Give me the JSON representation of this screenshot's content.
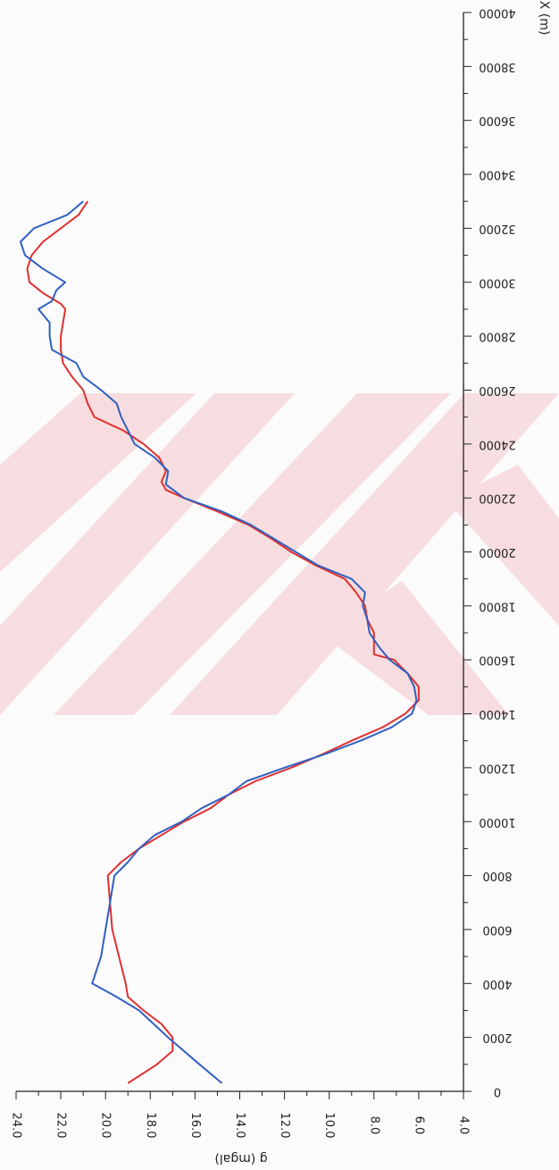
{
  "chart_data": {
    "type": "line",
    "orientation": "rotated-180",
    "xlabel": "X (m)",
    "ylabel": "g (mgal)",
    "xlim": [
      0,
      40000
    ],
    "ylim": [
      4.0,
      24.0
    ],
    "x_ticks": [
      "0",
      "2000",
      "4000",
      "6000",
      "8000",
      "10000",
      "12000",
      "14000",
      "16000",
      "18000",
      "20000",
      "22000",
      "24000",
      "26000",
      "28000",
      "30000",
      "32000",
      "34000",
      "36000",
      "38000",
      "40000"
    ],
    "y_ticks": [
      "4.0",
      "6.0",
      "8.0",
      "10.0",
      "12.0",
      "14.0",
      "16.0",
      "18.0",
      "20.0",
      "22.0",
      "24.0"
    ],
    "grid": false,
    "series": [
      {
        "color": "#e03030",
        "x": [
          300,
          1000,
          1500,
          2000,
          2500,
          3000,
          3500,
          4000,
          5000,
          6000,
          7000,
          8000,
          8500,
          9000,
          9500,
          10000,
          10500,
          11000,
          11500,
          12000,
          12500,
          13000,
          13500,
          14000,
          14500,
          15000,
          15500,
          16000,
          16200,
          16600,
          17000,
          17500,
          18000,
          18500,
          19000,
          19500,
          20000,
          20500,
          21000,
          21500,
          22000,
          22300,
          22600,
          23000,
          23500,
          24000,
          24500,
          25000,
          25500,
          26000,
          26500,
          27000,
          27500,
          28000,
          28500,
          29000,
          29200,
          29600,
          30000,
          30500,
          31000,
          31500,
          32000,
          32500,
          33000
        ],
        "y": [
          19.0,
          17.7,
          17.0,
          17.0,
          17.5,
          18.3,
          19.0,
          19.1,
          19.4,
          19.7,
          19.8,
          19.9,
          19.3,
          18.5,
          17.5,
          16.5,
          15.3,
          14.5,
          13.3,
          11.7,
          10.3,
          9.0,
          7.6,
          6.6,
          6.0,
          6.0,
          6.5,
          7.1,
          8.0,
          8.0,
          8.0,
          8.3,
          8.4,
          8.8,
          9.3,
          10.6,
          11.7,
          12.6,
          13.6,
          15.0,
          16.5,
          17.3,
          17.5,
          17.3,
          17.6,
          18.3,
          19.2,
          20.5,
          20.8,
          21.0,
          21.5,
          21.9,
          22.0,
          22.0,
          21.9,
          21.8,
          22.0,
          22.8,
          23.4,
          23.5,
          23.3,
          22.8,
          22.0,
          21.2,
          20.8
        ]
      },
      {
        "color": "#3060c0",
        "x": [
          300,
          1000,
          2000,
          3000,
          3500,
          4000,
          4500,
          5000,
          6000,
          7000,
          8000,
          8500,
          9000,
          9500,
          10000,
          10500,
          11000,
          11500,
          12000,
          12500,
          13000,
          13500,
          14000,
          14500,
          15000,
          15500,
          16000,
          16500,
          17000,
          17500,
          18000,
          18500,
          19000,
          19500,
          20000,
          20500,
          21000,
          21500,
          22000,
          22500,
          23000,
          23500,
          24000,
          24500,
          25000,
          25500,
          26000,
          26500,
          27000,
          27500,
          28000,
          28500,
          29000,
          29300,
          29700,
          30000,
          30500,
          31000,
          31500,
          32000,
          32500,
          33000
        ],
        "y": [
          14.8,
          15.8,
          17.2,
          18.5,
          19.5,
          20.6,
          20.4,
          20.2,
          20.0,
          19.8,
          19.6,
          19.0,
          18.5,
          17.8,
          16.6,
          15.7,
          14.5,
          13.7,
          12.0,
          10.2,
          8.6,
          7.2,
          6.3,
          6.1,
          6.2,
          6.5,
          7.3,
          7.8,
          8.2,
          8.3,
          8.5,
          8.4,
          9.0,
          10.5,
          11.5,
          12.5,
          13.5,
          14.8,
          16.5,
          17.3,
          17.2,
          17.8,
          18.7,
          19.0,
          19.3,
          19.5,
          20.2,
          21.0,
          21.3,
          22.4,
          22.5,
          22.5,
          23.0,
          22.4,
          22.2,
          21.8,
          22.8,
          23.6,
          23.8,
          23.2,
          21.7,
          21.0
        ]
      }
    ]
  }
}
